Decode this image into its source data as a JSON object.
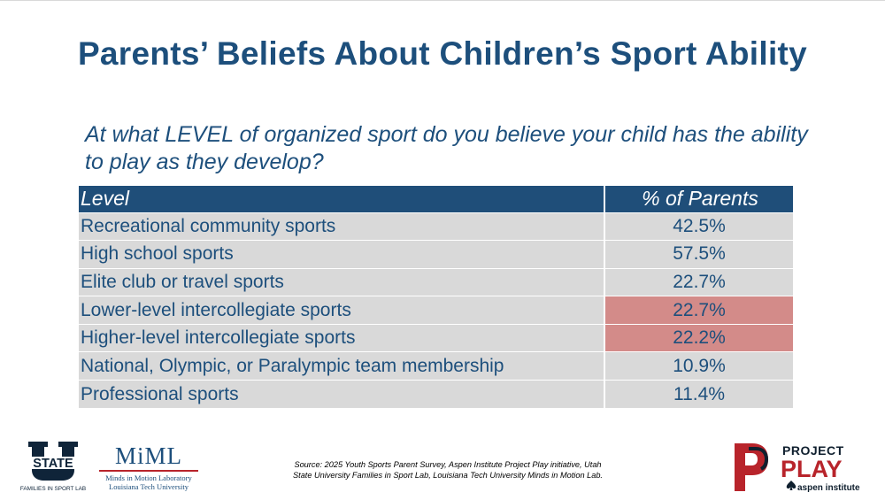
{
  "slide": {
    "title": "Parents’ Beliefs About Children’s Sport Ability",
    "question": "At what LEVEL of organized sport do you believe your child has the ability to play as they develop?"
  },
  "table": {
    "headers": [
      "Level",
      "% of Parents"
    ],
    "rows": [
      {
        "level": "Recreational community sports",
        "pct": "42.5%",
        "highlight": false
      },
      {
        "level": "High school sports",
        "pct": "57.5%",
        "highlight": false
      },
      {
        "level": "Elite club or travel sports",
        "pct": "22.7%",
        "highlight": false
      },
      {
        "level": "Lower-level intercollegiate sports",
        "pct": "22.7%",
        "highlight": true
      },
      {
        "level": "Higher-level intercollegiate sports",
        "pct": "22.2%",
        "highlight": true
      },
      {
        "level": "National, Olympic, or Paralympic team membership",
        "pct": "10.9%",
        "highlight": false
      },
      {
        "level": "Professional sports",
        "pct": "11.4%",
        "highlight": false
      }
    ]
  },
  "footer": {
    "source_line1": "Source: 2025 Youth Sports Parent Survey, Aspen Institute Project Play initiative, Utah",
    "source_line2": "State University Families in Sport Lab, Louisiana Tech University Minds in Motion Lab.",
    "usu_logo": {
      "text": "STATE",
      "caption": "FAMILIES IN SPORT LAB"
    },
    "miml_logo": {
      "name": "MiML",
      "line1": "Minds in Motion Laboratory",
      "line2": "Louisiana Tech University"
    },
    "pp_logo": {
      "line1": "PROJECT",
      "line2": "PLAY",
      "line3": "aspen institute"
    }
  },
  "colors": {
    "title_blue": "#1d4f7c",
    "header_blue": "#1f4e79",
    "row_gray": "#d9d9d9",
    "highlight_red": "#d38b89",
    "brand_red": "#b8242b"
  }
}
